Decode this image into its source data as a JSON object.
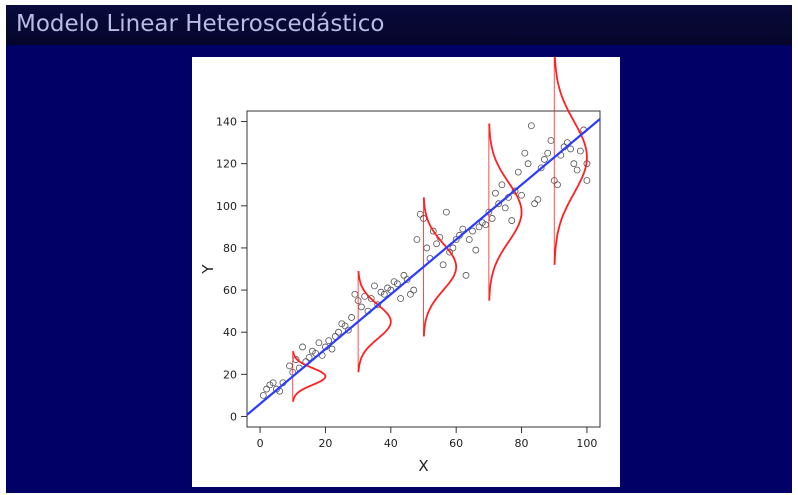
{
  "slide": {
    "title": "Modelo Linear Heteroscedástico"
  },
  "colors": {
    "background": "#000066",
    "title_bar": "#07073a",
    "title_text": "#b8bce6",
    "regression_line": "#2b3bff",
    "density_curve": "#ff2020",
    "points": "#555555"
  },
  "chart_data": {
    "type": "scatter",
    "title": "",
    "xlabel": "X",
    "ylabel": "Y",
    "xlim": [
      -4,
      104
    ],
    "ylim": [
      -5,
      145
    ],
    "xticks": [
      0,
      20,
      40,
      60,
      80,
      100
    ],
    "yticks": [
      0,
      20,
      40,
      60,
      80,
      100,
      120,
      140
    ],
    "grid": false,
    "regression_line": {
      "intercept": 6,
      "slope": 1.3
    },
    "density_curves": [
      {
        "x": 10,
        "mean": 19,
        "sd": 4,
        "height": 10
      },
      {
        "x": 30,
        "mean": 45,
        "sd": 8,
        "height": 10
      },
      {
        "x": 50,
        "mean": 71,
        "sd": 11,
        "height": 10
      },
      {
        "x": 70,
        "mean": 97,
        "sd": 14,
        "height": 10
      },
      {
        "x": 90,
        "mean": 123,
        "sd": 17,
        "height": 10
      }
    ],
    "points": [
      [
        1,
        10
      ],
      [
        2,
        13
      ],
      [
        3,
        15
      ],
      [
        4,
        16
      ],
      [
        5,
        13
      ],
      [
        6,
        12
      ],
      [
        7,
        16
      ],
      [
        9,
        24
      ],
      [
        10,
        21
      ],
      [
        11,
        27
      ],
      [
        12,
        23
      ],
      [
        13,
        33
      ],
      [
        14,
        26
      ],
      [
        15,
        28
      ],
      [
        16,
        31
      ],
      [
        17,
        30
      ],
      [
        18,
        35
      ],
      [
        19,
        29
      ],
      [
        20,
        33
      ],
      [
        21,
        36
      ],
      [
        22,
        32
      ],
      [
        23,
        38
      ],
      [
        24,
        40
      ],
      [
        25,
        44
      ],
      [
        26,
        43
      ],
      [
        27,
        41
      ],
      [
        28,
        47
      ],
      [
        29,
        58
      ],
      [
        30,
        55
      ],
      [
        31,
        52
      ],
      [
        32,
        57
      ],
      [
        33,
        50
      ],
      [
        34,
        56
      ],
      [
        35,
        62
      ],
      [
        36,
        53
      ],
      [
        37,
        59
      ],
      [
        38,
        58
      ],
      [
        39,
        61
      ],
      [
        40,
        60
      ],
      [
        41,
        64
      ],
      [
        42,
        63
      ],
      [
        43,
        56
      ],
      [
        44,
        67
      ],
      [
        45,
        65
      ],
      [
        46,
        58
      ],
      [
        47,
        60
      ],
      [
        48,
        84
      ],
      [
        49,
        96
      ],
      [
        50,
        94
      ],
      [
        51,
        80
      ],
      [
        52,
        75
      ],
      [
        53,
        88
      ],
      [
        54,
        82
      ],
      [
        55,
        85
      ],
      [
        56,
        72
      ],
      [
        57,
        97
      ],
      [
        58,
        78
      ],
      [
        59,
        80
      ],
      [
        60,
        84
      ],
      [
        61,
        86
      ],
      [
        62,
        89
      ],
      [
        63,
        67
      ],
      [
        64,
        84
      ],
      [
        65,
        88
      ],
      [
        66,
        79
      ],
      [
        67,
        90
      ],
      [
        68,
        92
      ],
      [
        69,
        91
      ],
      [
        70,
        97
      ],
      [
        71,
        94
      ],
      [
        72,
        106
      ],
      [
        73,
        101
      ],
      [
        74,
        110
      ],
      [
        75,
        99
      ],
      [
        76,
        104
      ],
      [
        77,
        93
      ],
      [
        78,
        107
      ],
      [
        79,
        116
      ],
      [
        80,
        105
      ],
      [
        81,
        125
      ],
      [
        82,
        120
      ],
      [
        83,
        138
      ],
      [
        84,
        101
      ],
      [
        85,
        103
      ],
      [
        86,
        118
      ],
      [
        87,
        122
      ],
      [
        88,
        125
      ],
      [
        89,
        131
      ],
      [
        90,
        112
      ],
      [
        91,
        110
      ],
      [
        92,
        124
      ],
      [
        93,
        128
      ],
      [
        94,
        130
      ],
      [
        95,
        127
      ],
      [
        96,
        120
      ],
      [
        97,
        117
      ],
      [
        98,
        126
      ],
      [
        99,
        136
      ],
      [
        100,
        112
      ],
      [
        100,
        120
      ]
    ]
  }
}
